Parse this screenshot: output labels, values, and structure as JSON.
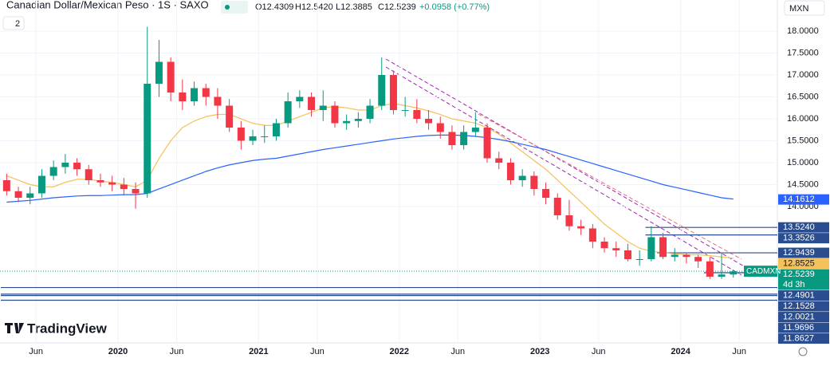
{
  "header": {
    "symbol": "Canadian Dollar/Mexican Peso · 1S · SAXO",
    "open": "O12.4309",
    "high": "H12.5420",
    "low": "L12.3885",
    "close": "C12.5239",
    "change": "+0.0958 (+0.77%)",
    "indicators": "2",
    "currency": "MXN",
    "logo": "TradingView"
  },
  "chart_data": {
    "type": "candlestick",
    "x": [
      "2019-03",
      "2019-04",
      "2019-05",
      "2019-06",
      "2019-07",
      "2019-08",
      "2019-09",
      "2019-10",
      "2019-11",
      "2019-12",
      "2020-01",
      "2020-02",
      "2020-03",
      "2020-04",
      "2020-05",
      "2020-06",
      "2020-07",
      "2020-08",
      "2020-09",
      "2020-10",
      "2020-11",
      "2020-12",
      "2021-01",
      "2021-02",
      "2021-03",
      "2021-04",
      "2021-05",
      "2021-06",
      "2021-07",
      "2021-08",
      "2021-09",
      "2021-10",
      "2021-11",
      "2021-12",
      "2022-01",
      "2022-02",
      "2022-03",
      "2022-04",
      "2022-05",
      "2022-06",
      "2022-07",
      "2022-08",
      "2022-09",
      "2022-10",
      "2022-11",
      "2022-12",
      "2023-01",
      "2023-02",
      "2023-03",
      "2023-04",
      "2023-05",
      "2023-06",
      "2023-07",
      "2023-08",
      "2023-09",
      "2023-10",
      "2023-11",
      "2023-12",
      "2024-01",
      "2024-02",
      "2024-03",
      "2024-04",
      "2024-05"
    ],
    "open": [
      14.6,
      14.35,
      14.2,
      14.3,
      14.7,
      14.9,
      15.0,
      14.85,
      14.6,
      14.55,
      14.5,
      14.4,
      14.3,
      16.8,
      17.3,
      16.6,
      16.4,
      16.7,
      16.5,
      16.3,
      15.8,
      15.5,
      15.6,
      15.6,
      15.9,
      16.4,
      16.5,
      16.2,
      16.3,
      15.9,
      15.95,
      16.0,
      16.3,
      17.0,
      16.2,
      16.2,
      16.0,
      15.9,
      15.7,
      15.4,
      15.7,
      15.8,
      15.1,
      15.0,
      14.6,
      14.7,
      14.4,
      14.2,
      13.8,
      13.55,
      13.5,
      13.2,
      13.05,
      13.0,
      12.8,
      12.8,
      13.3,
      12.85,
      12.9,
      12.85,
      12.75,
      12.4,
      12.45
    ],
    "high": [
      14.75,
      14.45,
      14.45,
      14.85,
      15.05,
      15.2,
      15.1,
      14.95,
      14.75,
      14.7,
      14.65,
      14.55,
      18.1,
      17.8,
      17.4,
      16.9,
      16.85,
      16.8,
      16.7,
      16.45,
      15.95,
      15.75,
      15.85,
      16.0,
      16.6,
      16.65,
      16.6,
      16.65,
      16.4,
      16.1,
      16.15,
      16.45,
      17.4,
      17.1,
      16.5,
      16.45,
      16.2,
      16.05,
      15.85,
      15.85,
      16.15,
      15.9,
      15.25,
      15.1,
      14.85,
      14.8,
      14.55,
      14.3,
      14.15,
      13.7,
      13.6,
      13.3,
      13.2,
      13.15,
      13.0,
      13.55,
      13.4,
      13.05,
      12.95,
      12.9,
      12.85,
      12.95,
      12.56
    ],
    "low": [
      14.25,
      14.1,
      14.05,
      14.2,
      14.6,
      14.75,
      14.7,
      14.5,
      14.45,
      14.35,
      14.25,
      13.95,
      14.2,
      16.5,
      16.4,
      16.2,
      16.3,
      16.3,
      16.0,
      15.7,
      15.3,
      15.4,
      15.45,
      15.5,
      15.8,
      16.25,
      16.05,
      15.95,
      15.8,
      15.75,
      15.8,
      15.9,
      16.2,
      16.1,
      16.05,
      15.9,
      15.75,
      15.55,
      15.3,
      15.3,
      15.6,
      15.0,
      14.85,
      14.5,
      14.45,
      14.25,
      14.05,
      13.7,
      13.45,
      13.35,
      13.05,
      12.95,
      12.85,
      12.75,
      12.65,
      12.75,
      12.8,
      12.75,
      12.7,
      12.6,
      12.35,
      12.35,
      12.38
    ],
    "close": [
      14.35,
      14.2,
      14.3,
      14.7,
      14.9,
      15.0,
      14.85,
      14.6,
      14.55,
      14.5,
      14.4,
      14.3,
      16.8,
      17.3,
      16.6,
      16.4,
      16.7,
      16.5,
      16.3,
      15.8,
      15.5,
      15.6,
      15.6,
      15.9,
      16.4,
      16.5,
      16.2,
      16.3,
      15.9,
      15.95,
      16.0,
      16.3,
      17.0,
      16.2,
      16.2,
      16.0,
      15.9,
      15.7,
      15.4,
      15.7,
      15.8,
      15.1,
      15.0,
      14.6,
      14.7,
      14.4,
      14.2,
      13.8,
      13.55,
      13.5,
      13.2,
      13.05,
      13.0,
      12.8,
      12.8,
      13.3,
      12.85,
      12.9,
      12.85,
      12.75,
      12.4,
      12.45,
      12.52
    ],
    "up_color": "#089981",
    "down_color": "#f23645",
    "series": [
      {
        "color": "#f5c15a",
        "values": [
          14.7,
          14.6,
          14.5,
          14.45,
          14.45,
          14.55,
          14.62,
          14.62,
          14.58,
          14.55,
          14.5,
          14.45,
          14.6,
          15.1,
          15.5,
          15.8,
          15.95,
          16.05,
          16.1,
          16.1,
          16.0,
          15.9,
          15.85,
          15.85,
          15.95,
          16.05,
          16.15,
          16.25,
          16.28,
          16.25,
          16.2,
          16.2,
          16.3,
          16.35,
          16.3,
          16.25,
          16.18,
          16.1,
          16.0,
          15.95,
          15.9,
          15.8,
          15.65,
          15.45,
          15.25,
          15.05,
          14.85,
          14.6,
          14.35,
          14.1,
          13.85,
          13.6,
          13.4,
          13.2,
          13.05,
          12.98,
          12.95,
          12.92,
          12.9,
          12.9,
          12.88,
          12.85,
          12.82
        ]
      },
      {
        "color": "#2962ff",
        "values": [
          14.1,
          14.12,
          14.14,
          14.17,
          14.2,
          14.22,
          14.24,
          14.25,
          14.25,
          14.26,
          14.27,
          14.27,
          14.3,
          14.4,
          14.5,
          14.6,
          14.7,
          14.8,
          14.88,
          14.95,
          15.0,
          15.05,
          15.08,
          15.1,
          15.15,
          15.2,
          15.25,
          15.3,
          15.34,
          15.38,
          15.42,
          15.46,
          15.5,
          15.54,
          15.57,
          15.6,
          15.62,
          15.63,
          15.63,
          15.62,
          15.6,
          15.57,
          15.53,
          15.48,
          15.42,
          15.36,
          15.3,
          15.22,
          15.14,
          15.06,
          14.98,
          14.9,
          14.82,
          14.74,
          14.66,
          14.58,
          14.5,
          14.44,
          14.38,
          14.32,
          14.26,
          14.2,
          14.17
        ]
      }
    ],
    "ylim": [
      10.89,
      18.71
    ],
    "yticks": [
      {
        "value": 18,
        "label": "18.0000"
      },
      {
        "value": 17.5,
        "label": "17.5000"
      },
      {
        "value": 17,
        "label": "17.0000"
      },
      {
        "value": 16.5,
        "label": "16.5000"
      },
      {
        "value": 16,
        "label": "16.0000"
      },
      {
        "value": 15.5,
        "label": "15.5000"
      },
      {
        "value": 15,
        "label": "15.0000"
      },
      {
        "value": 14.5,
        "label": "14.5000"
      },
      {
        "value": 14,
        "label": "14.0000"
      }
    ],
    "xticks": [
      {
        "value": "2019-06",
        "label": "Jun"
      },
      {
        "value": "2020-01",
        "label": "2020"
      },
      {
        "value": "2020-06",
        "label": "Jun"
      },
      {
        "value": "2021-01",
        "label": "2021"
      },
      {
        "value": "2021-06",
        "label": "Jun"
      },
      {
        "value": "2022-01",
        "label": "2022"
      },
      {
        "value": "2022-06",
        "label": "Jun"
      },
      {
        "value": "2023-01",
        "label": "2023"
      },
      {
        "value": "2023-06",
        "label": "Jun"
      },
      {
        "value": "2024-01",
        "label": "2024"
      },
      {
        "value": "2024-06",
        "label": "Jun"
      }
    ],
    "levels": [
      {
        "value": 14.1612,
        "label": "14.1612",
        "color": "#2962ff"
      },
      {
        "value": 13.524,
        "label": "13.5240",
        "color": "#2a4d8f",
        "start": "2023-10"
      },
      {
        "value": 13.3526,
        "label": "13.3526",
        "color": "#2a4d8f",
        "start": "2023-10"
      },
      {
        "value": 12.9439,
        "label": "12.9439",
        "color": "#2a4d8f",
        "start": "2023-11"
      },
      {
        "value": 12.8525,
        "label": "12.8525",
        "color": "#f5c15a"
      },
      {
        "value": 12.5239,
        "label": "12.5239",
        "color": "#089981",
        "tag": "CADMXN",
        "countdown": "4d 3h"
      },
      {
        "value": 12.4901,
        "label": "12.4901",
        "color": "#2a4d8f",
        "start": "2024-03"
      },
      {
        "value": 12.1528,
        "label": "12.1528",
        "color": "#2a4d8f",
        "start": "2019-03"
      },
      {
        "value": 12.0021,
        "label": "12.0021",
        "color": "#2a4d8f",
        "start": "2019-03"
      },
      {
        "value": 11.9696,
        "label": "11.9696",
        "color": "#2a4d8f",
        "start": "2019-03"
      },
      {
        "value": 11.8627,
        "label": "11.8627",
        "color": "#2a4d8f",
        "start": "2019-03"
      }
    ]
  }
}
